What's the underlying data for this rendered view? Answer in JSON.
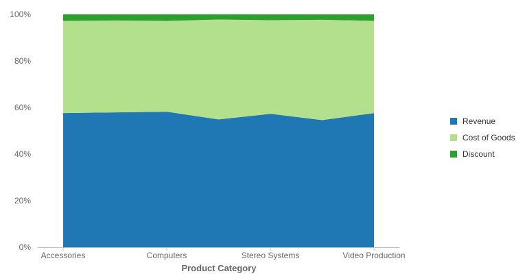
{
  "chart_data": {
    "type": "area",
    "stacking": "percent",
    "title": "",
    "xlabel": "Product Category",
    "ylabel": "",
    "tick_labels_x": [
      "Accessories",
      "Computers",
      "Stereo Systems",
      "Video Production"
    ],
    "ylim": [
      0,
      100
    ],
    "y_ticks": [
      "0%",
      "20%",
      "40%",
      "60%",
      "80%",
      "100%"
    ],
    "grid": false,
    "legend_position": "right",
    "x": [
      0,
      1,
      2,
      3,
      4,
      5,
      6
    ],
    "series": [
      {
        "name": "Revenue",
        "color": "#1f77b4",
        "values": [
          57.6,
          57.9,
          58.2,
          54.9,
          57.3,
          54.6,
          57.6
        ]
      },
      {
        "name": "Cost of Goods",
        "color": "#b3e08c",
        "values": [
          39.6,
          39.5,
          39.0,
          42.9,
          40.2,
          43.1,
          39.6
        ]
      },
      {
        "name": "Discount",
        "color": "#2ca02c",
        "values": [
          2.8,
          2.6,
          2.8,
          2.2,
          2.5,
          2.3,
          2.8
        ]
      }
    ]
  }
}
